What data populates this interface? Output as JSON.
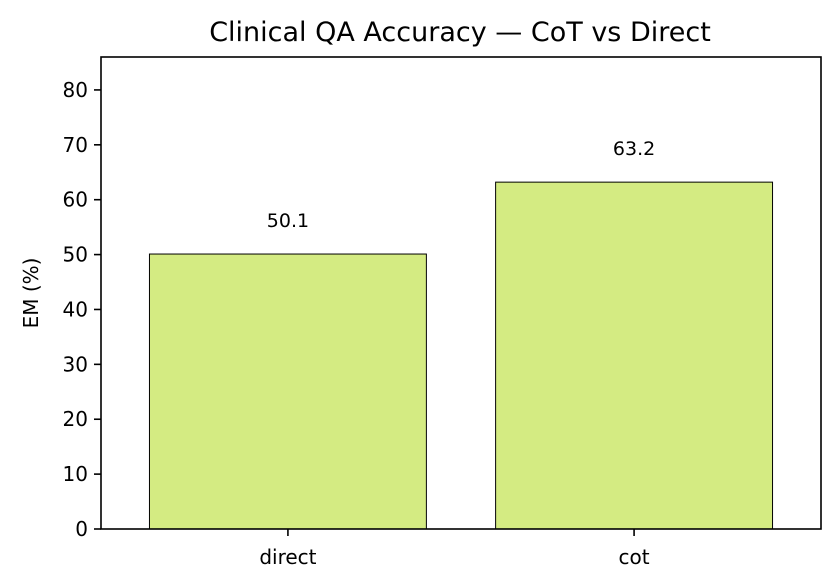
{
  "chart_data": {
    "type": "bar",
    "title": "Clinical QA Accuracy — CoT vs Direct",
    "xlabel": "",
    "ylabel": "EM (%)",
    "categories": [
      "direct",
      "cot"
    ],
    "values": [
      50.1,
      63.2
    ],
    "data_labels": [
      "50.1",
      "63.2"
    ],
    "ylim": [
      0,
      86
    ],
    "yticks": [
      0,
      10,
      20,
      30,
      40,
      50,
      60,
      70,
      80
    ],
    "ytick_labels": [
      "0",
      "10",
      "20",
      "30",
      "40",
      "50",
      "60",
      "70",
      "80"
    ],
    "bar_color": "#d4eb82",
    "bar_edge_color": "#000000",
    "grid": false,
    "legend": "none"
  }
}
